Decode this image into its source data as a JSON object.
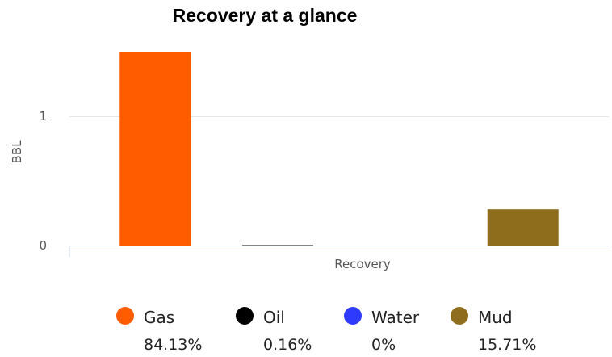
{
  "chart_data": {
    "type": "bar",
    "title": "Recovery at a glance",
    "xlabel": "",
    "ylabel": "BBL",
    "categories": [
      "Recovery"
    ],
    "y_ticks": [
      "0",
      "1"
    ],
    "ylim": [
      0,
      1.65
    ],
    "grid": true,
    "legend_position": "bottom",
    "series": [
      {
        "name": "Gas",
        "values": [
          1.5
        ],
        "color": "#FF5C00",
        "percent": "84.13%"
      },
      {
        "name": "Oil",
        "values": [
          0.003
        ],
        "color": "#000000",
        "percent": "0.16%"
      },
      {
        "name": "Water",
        "values": [
          0
        ],
        "color": "#2E3BFF",
        "percent": "0%"
      },
      {
        "name": "Mud",
        "values": [
          0.28
        ],
        "color": "#8E6E1C",
        "percent": "15.71%"
      }
    ]
  }
}
